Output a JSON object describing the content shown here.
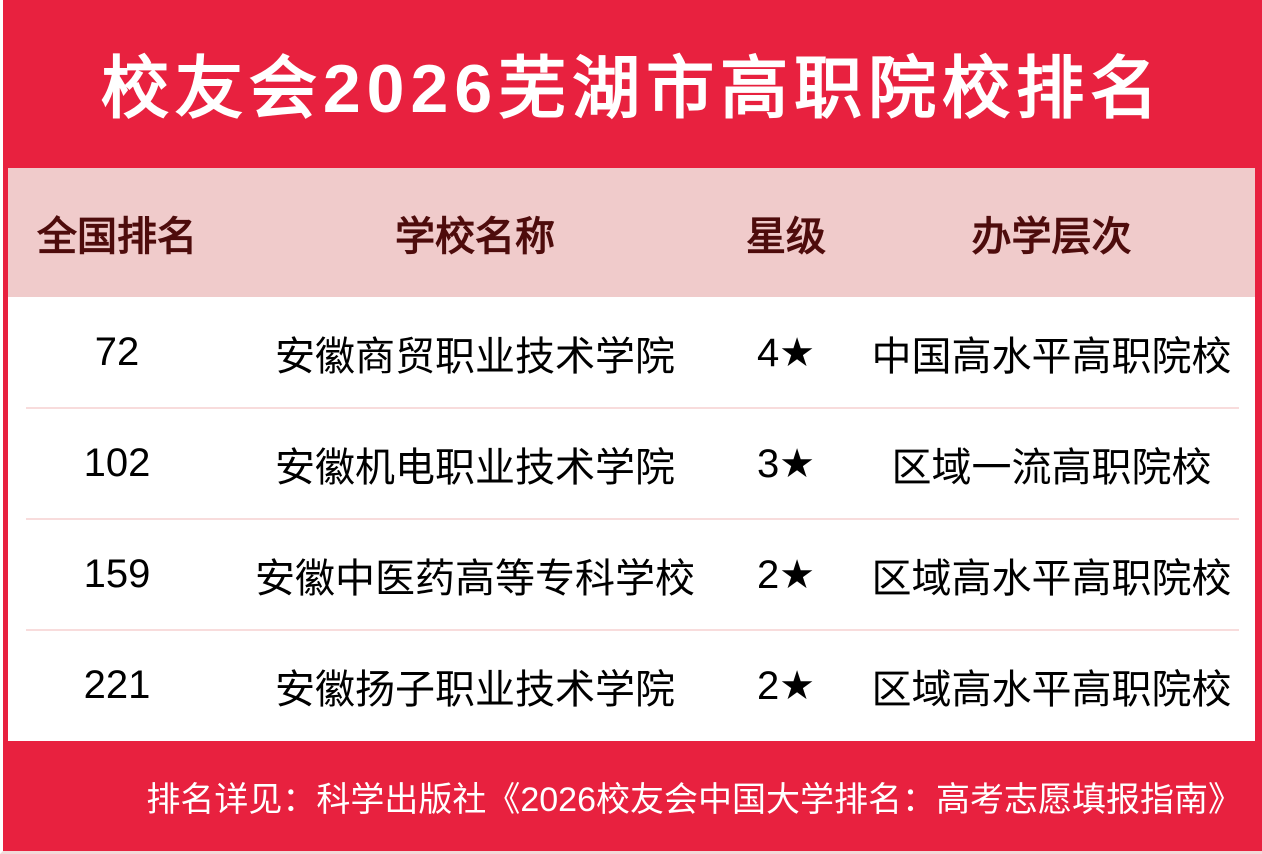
{
  "title": "校友会2026芜湖市高职院校排名",
  "table": {
    "headers": {
      "rank": "全国排名",
      "name": "学校名称",
      "stars": "星级",
      "level": "办学层次"
    },
    "rows": [
      {
        "rank": "72",
        "name": "安徽商贸职业技术学院",
        "stars": "4★",
        "level": "中国高水平高职院校"
      },
      {
        "rank": "102",
        "name": "安徽机电职业技术学院",
        "stars": "3★",
        "level": "区域一流高职院校"
      },
      {
        "rank": "159",
        "name": "安徽中医药高等专科学校",
        "stars": "2★",
        "level": "区域高水平高职院校"
      },
      {
        "rank": "221",
        "name": "安徽扬子职业技术学院",
        "stars": "2★",
        "level": "区域高水平高职院校"
      }
    ]
  },
  "footer": {
    "note": "排名详见：科学出版社《2026校友会中国大学排名：高考志愿填报指南》"
  },
  "colors": {
    "background_red": "#e8213f",
    "header_pink": "#f0cbcb",
    "header_text_maroon": "#4e0c0c",
    "row_divider_pink": "#f8dcdc",
    "title_text": "#ffffff",
    "row_text": "#000000",
    "footer_text": "#ffffff"
  },
  "chart_data": {
    "type": "table",
    "title": "校友会2026芜湖市高职院校排名",
    "columns": [
      "全国排名",
      "学校名称",
      "星级",
      "办学层次"
    ],
    "rows": [
      [
        "72",
        "安徽商贸职业技术学院",
        "4★",
        "中国高水平高职院校"
      ],
      [
        "102",
        "安徽机电职业技术学院",
        "3★",
        "区域一流高职院校"
      ],
      [
        "159",
        "安徽中医药高等专科学校",
        "2★",
        "区域高水平高职院校"
      ],
      [
        "221",
        "安徽扬子职业技术学院",
        "2★",
        "区域高水平高职院校"
      ]
    ],
    "note": "排名详见：科学出版社《2026校友会中国大学排名：高考志愿填报指南》"
  }
}
